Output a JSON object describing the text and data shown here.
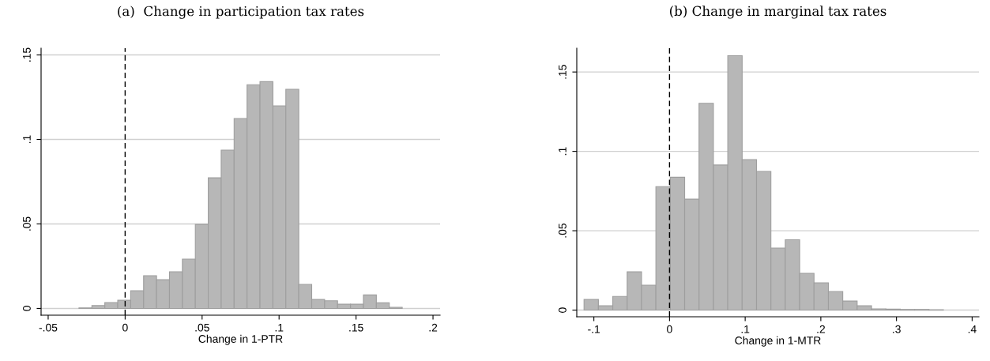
{
  "chart_data": [
    {
      "type": "histogram",
      "title": "(a)  Change in participation tax rates",
      "xlabel": "Change in 1-PTR",
      "color": "#b7b7b7",
      "bins": [
        -0.03,
        -0.0216,
        -0.0132,
        -0.0048,
        0.0036,
        0.012,
        0.0204,
        0.0288,
        0.0372,
        0.0456,
        0.054,
        0.0624,
        0.0708,
        0.0792,
        0.0876,
        0.096,
        0.1044,
        0.1128,
        0.1212,
        0.1296,
        0.138,
        0.1464,
        0.1548,
        0.1632,
        0.1716,
        0.18
      ],
      "values": [
        0.0003,
        0.0017,
        0.0035,
        0.0048,
        0.0105,
        0.0194,
        0.017,
        0.0217,
        0.0292,
        0.0497,
        0.0773,
        0.0937,
        0.1124,
        0.1324,
        0.1342,
        0.1199,
        0.1297,
        0.0142,
        0.0053,
        0.0045,
        0.0025,
        0.0025,
        0.008,
        0.0033,
        0.0007
      ],
      "xlim": [
        -0.0546,
        0.2046
      ],
      "ylim": [
        -0.004,
        0.154
      ],
      "xticks": [
        {
          "value": -0.05,
          "label": "-.05"
        },
        0,
        {
          "value": 0.05,
          "label": ".05"
        },
        {
          "value": 0.1,
          "label": ".1"
        },
        {
          "value": 0.15,
          "label": ".15"
        },
        {
          "value": 0.2,
          "label": ".2"
        }
      ],
      "yticks": [
        0,
        {
          "value": 0.05,
          "label": ".05"
        },
        {
          "value": 0.1,
          "label": ".1"
        },
        {
          "value": 0.15,
          "label": ".15"
        }
      ],
      "grid": "y",
      "ref_lines": [
        {
          "axis": "x",
          "value": 0,
          "color": "#000000",
          "line_style": "dashed"
        }
      ]
    },
    {
      "type": "histogram",
      "title": "(b) Change in marginal tax rates",
      "xlabel": "Change in 1-MTR",
      "color": "#b7b7b7",
      "bins": [
        -0.113,
        -0.094,
        -0.075,
        -0.056,
        -0.037,
        -0.018,
        0.001,
        0.02,
        0.039,
        0.058,
        0.077,
        0.096,
        0.115,
        0.134,
        0.153,
        0.172,
        0.191,
        0.21,
        0.229,
        0.248,
        0.267,
        0.286,
        0.305,
        0.324,
        0.343,
        0.362
      ],
      "values": [
        0.0067,
        0.0027,
        0.0086,
        0.0241,
        0.0157,
        0.0778,
        0.0837,
        0.0699,
        0.1303,
        0.0914,
        0.1603,
        0.0948,
        0.0874,
        0.0391,
        0.0443,
        0.0232,
        0.0172,
        0.0117,
        0.0057,
        0.0027,
        0.0008,
        0.0006,
        0.0004,
        0.0004,
        0.0002
      ],
      "xlim": [
        -0.1226,
        0.409
      ],
      "ylim": [
        -0.0042,
        0.165
      ],
      "xticks": [
        {
          "value": -0.1,
          "label": "-.1"
        },
        0,
        {
          "value": 0.1,
          "label": ".1"
        },
        {
          "value": 0.2,
          "label": ".2"
        },
        {
          "value": 0.3,
          "label": ".3"
        },
        {
          "value": 0.4,
          "label": ".4"
        }
      ],
      "yticks": [
        0,
        {
          "value": 0.05,
          "label": ".05"
        },
        {
          "value": 0.1,
          "label": ".1"
        },
        {
          "value": 0.15,
          "label": ".15"
        }
      ],
      "grid": "y",
      "ref_lines": [
        {
          "axis": "x",
          "value": 0,
          "color": "#000000",
          "line_style": "dashed"
        }
      ]
    }
  ]
}
